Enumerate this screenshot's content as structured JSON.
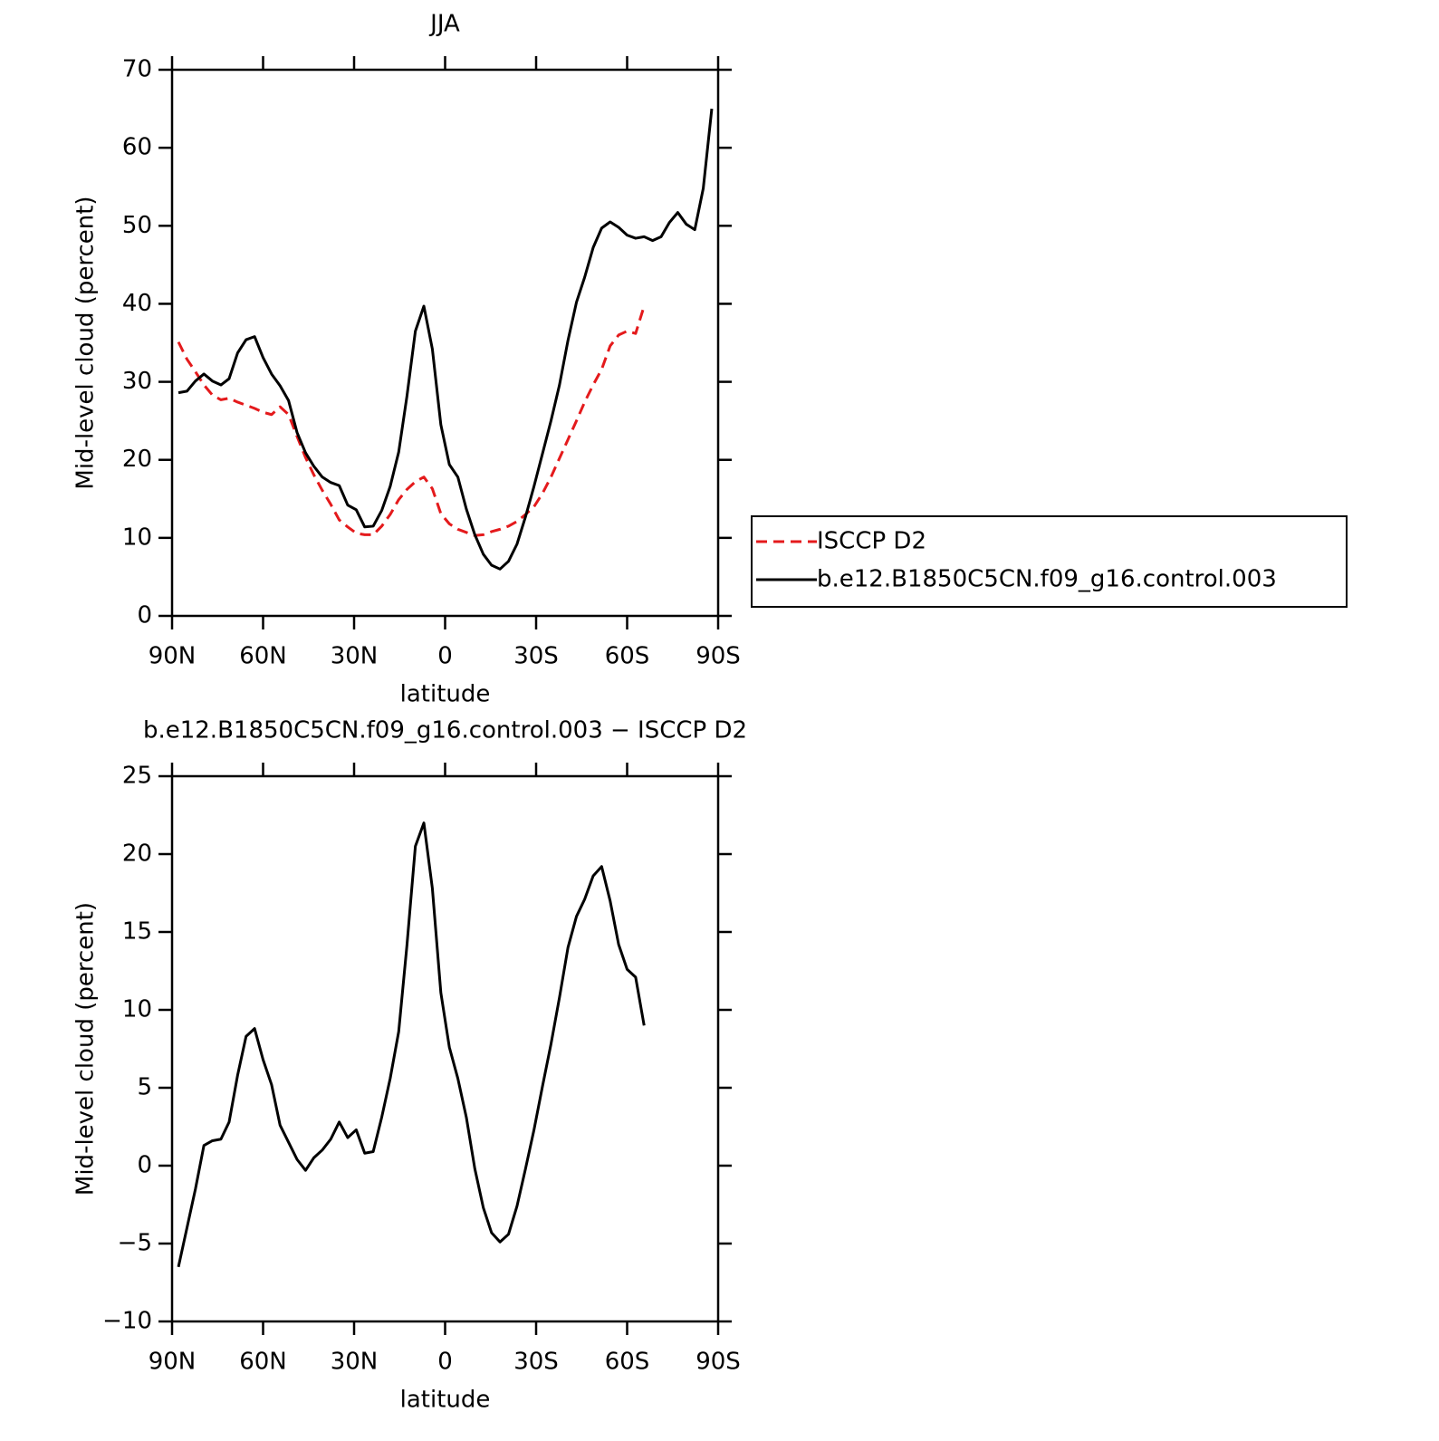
{
  "chart_data": [
    {
      "type": "line",
      "title": "JJA",
      "y_label": "Mid-level cloud (percent)",
      "x_label": "latitude",
      "x": [
        87.9,
        85.1,
        82.3,
        79.5,
        76.7,
        73.9,
        71.2,
        68.4,
        65.6,
        62.8,
        60.0,
        57.2,
        54.4,
        51.6,
        48.8,
        46.0,
        43.3,
        40.5,
        37.7,
        34.9,
        32.1,
        29.3,
        26.5,
        23.7,
        20.9,
        18.1,
        15.3,
        12.6,
        9.8,
        7.0,
        4.2,
        1.4,
        -1.4,
        -4.2,
        -7.0,
        -9.8,
        -12.6,
        -15.3,
        -18.1,
        -20.9,
        -23.7,
        -26.5,
        -29.3,
        -32.1,
        -34.9,
        -37.7,
        -40.5,
        -43.3,
        -46.0,
        -48.8,
        -51.6,
        -54.4,
        -57.2,
        -60.0,
        -62.8,
        -65.6,
        -68.4,
        -71.2,
        -73.9,
        -76.7,
        -79.5,
        -82.3,
        -85.1,
        -87.9
      ],
      "series": [
        {
          "name": "ISCCP D2",
          "color": "#e41a1c",
          "dashed": true,
          "values": [
            35.1,
            32.9,
            31.3,
            29.6,
            28.3,
            27.7,
            27.9,
            27.4,
            27.0,
            26.6,
            26.1,
            25.8,
            26.8,
            25.8,
            23.0,
            20.3,
            18.1,
            16.1,
            14.3,
            12.3,
            11.4,
            10.6,
            10.4,
            10.4,
            11.5,
            13.0,
            14.9,
            16.2,
            17.2,
            17.8,
            16.3,
            13.1,
            11.8,
            11.1,
            10.7,
            10.3,
            10.4,
            10.8,
            11.1,
            11.5,
            12.1,
            13.0,
            14.0,
            15.7,
            17.8,
            20.2,
            22.6,
            25.0,
            27.4,
            29.6,
            31.6,
            34.6,
            36.0,
            36.5,
            36.2,
            39.7,
            null,
            null,
            null,
            null,
            null,
            null,
            null,
            null
          ]
        },
        {
          "name": "b.e12.B1850C5CN.f09_g16.control.003",
          "color": "#000000",
          "dashed": false,
          "values": [
            28.6,
            28.8,
            30.1,
            31.0,
            30.1,
            29.6,
            30.4,
            33.7,
            35.4,
            35.8,
            33.1,
            31.0,
            29.5,
            27.6,
            23.5,
            20.9,
            19.2,
            17.8,
            17.1,
            16.7,
            14.2,
            13.6,
            11.4,
            11.5,
            13.5,
            16.6,
            21.0,
            28.1,
            36.5,
            39.7,
            34.2,
            24.5,
            19.4,
            17.8,
            13.7,
            10.4,
            7.9,
            6.5,
            6.0,
            7.0,
            9.2,
            12.7,
            16.6,
            20.8,
            25.0,
            29.6,
            35.3,
            40.2,
            43.4,
            47.2,
            49.7,
            50.5,
            49.8,
            48.8,
            48.4,
            48.6,
            48.1,
            48.6,
            50.4,
            51.7,
            50.2,
            49.5,
            54.8,
            65.0
          ]
        }
      ],
      "xlim": [
        90,
        -90
      ],
      "xticks": [
        {
          "value": 90,
          "label": "90N"
        },
        {
          "value": 60,
          "label": "60N"
        },
        {
          "value": 30,
          "label": "30N"
        },
        0,
        {
          "value": -30,
          "label": "30S"
        },
        {
          "value": -60,
          "label": "60S"
        },
        {
          "value": -90,
          "label": "90S"
        }
      ],
      "ylim": [
        0,
        70
      ],
      "yticks": [
        0,
        10,
        20,
        30,
        40,
        50,
        60,
        70
      ],
      "legend": "right"
    },
    {
      "type": "line",
      "title": "b.e12.B1850C5CN.f09_g16.control.003 − ISCCP D2",
      "y_label": "Mid-level cloud (percent)",
      "x_label": "latitude",
      "x": [
        87.9,
        85.1,
        82.3,
        79.5,
        76.7,
        73.9,
        71.2,
        68.4,
        65.6,
        62.8,
        60.0,
        57.2,
        54.4,
        51.6,
        48.8,
        46.0,
        43.3,
        40.5,
        37.7,
        34.9,
        32.1,
        29.3,
        26.5,
        23.7,
        20.9,
        18.1,
        15.3,
        12.6,
        9.8,
        7.0,
        4.2,
        1.4,
        -1.4,
        -4.2,
        -7.0,
        -9.8,
        -12.6,
        -15.3,
        -18.1,
        -20.9,
        -23.7,
        -26.5,
        -29.3,
        -32.1,
        -34.9,
        -37.7,
        -40.5,
        -43.3,
        -46.0,
        -48.8,
        -51.6,
        -54.4,
        -57.2,
        -60.0,
        -62.8,
        -65.6,
        -68.4,
        -71.2,
        -73.9,
        -76.7,
        -79.5,
        -82.3,
        -85.1,
        -87.9
      ],
      "series": [
        {
          "color": "#000000",
          "dashed": false,
          "values": [
            -6.5,
            -4.0,
            -1.5,
            1.3,
            1.6,
            1.7,
            2.8,
            5.8,
            8.3,
            8.8,
            6.8,
            5.2,
            2.6,
            1.5,
            0.4,
            -0.3,
            0.5,
            1.0,
            1.7,
            2.8,
            1.8,
            2.3,
            0.8,
            0.9,
            3.1,
            5.6,
            8.6,
            14.1,
            20.5,
            22.0,
            17.8,
            11.1,
            7.6,
            5.6,
            3.1,
            -0.2,
            -2.7,
            -4.3,
            -4.9,
            -4.4,
            -2.6,
            -0.2,
            2.3,
            5.1,
            7.8,
            10.8,
            14.0,
            16.0,
            17.1,
            18.6,
            19.2,
            17.0,
            14.2,
            12.6,
            12.1,
            9.0,
            null,
            null,
            null,
            null,
            null,
            null,
            null,
            null
          ]
        }
      ],
      "xlim": [
        90,
        -90
      ],
      "xticks": [
        {
          "value": 90,
          "label": "90N"
        },
        {
          "value": 60,
          "label": "60N"
        },
        {
          "value": 30,
          "label": "30N"
        },
        0,
        {
          "value": -30,
          "label": "30S"
        },
        {
          "value": -60,
          "label": "60S"
        },
        {
          "value": -90,
          "label": "90S"
        }
      ],
      "ylim": [
        -10,
        25
      ],
      "yticks": [
        {
          "value": -10,
          "label": "−10"
        },
        {
          "value": -5,
          "label": "−5"
        },
        0,
        5,
        10,
        15,
        20,
        25
      ]
    }
  ]
}
